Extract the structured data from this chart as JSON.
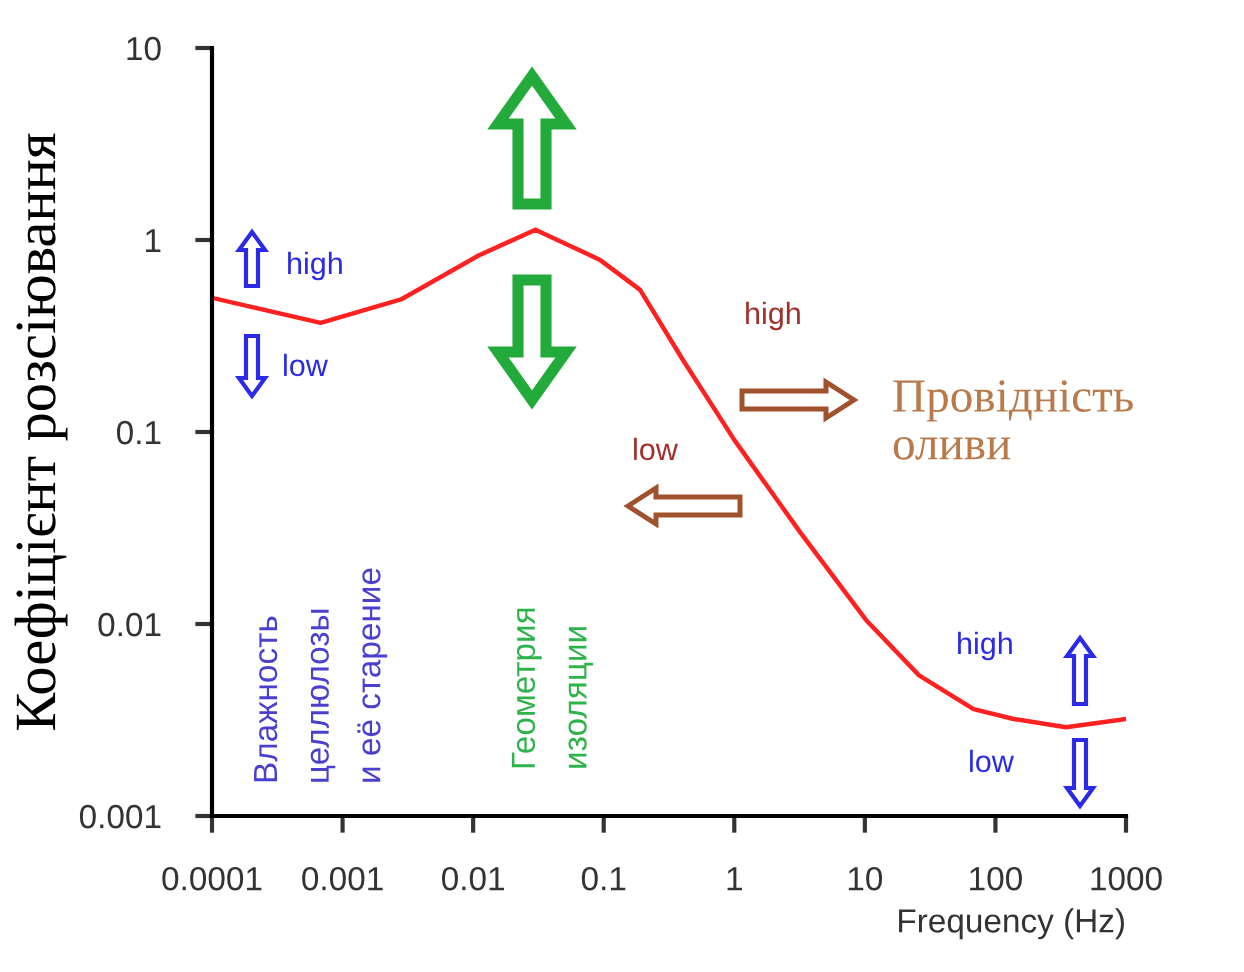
{
  "chart_data": {
    "type": "line",
    "xlabel": "Frequency (Hz)",
    "ylabel": "Коефіцієнт розсіювання",
    "log": "xy",
    "grid": false,
    "marker": "none",
    "line_style": "solid",
    "x": [
      0.0001,
      0.00068,
      0.0028,
      0.011,
      0.03,
      0.093,
      0.19,
      0.4,
      1.0,
      3.2,
      10.2,
      26,
      68,
      138,
      347,
      1000
    ],
    "series": [
      {
        "color": "#ff2020",
        "values": [
          0.5,
          0.37,
          0.49,
          0.83,
          1.13,
          0.79,
          0.55,
          0.24,
          0.091,
          0.03,
          0.0105,
          0.0054,
          0.0036,
          0.0032,
          0.0029,
          0.0032
        ]
      }
    ],
    "xlim": [
      0.0001,
      1000
    ],
    "ylim": [
      0.001,
      10
    ],
    "xticks": [
      0.0001,
      0.001,
      0.01,
      0.1,
      1,
      10,
      100,
      1000
    ],
    "yticks": [
      0.001,
      0.01,
      0.1,
      1,
      10
    ],
    "annotations": [
      "high",
      "low",
      "Влажность\nцеллюлозы\nи её старение",
      "Геометрия\nизоляции",
      "high",
      "low",
      "Провідність\nоливи",
      "high",
      "low"
    ]
  }
}
